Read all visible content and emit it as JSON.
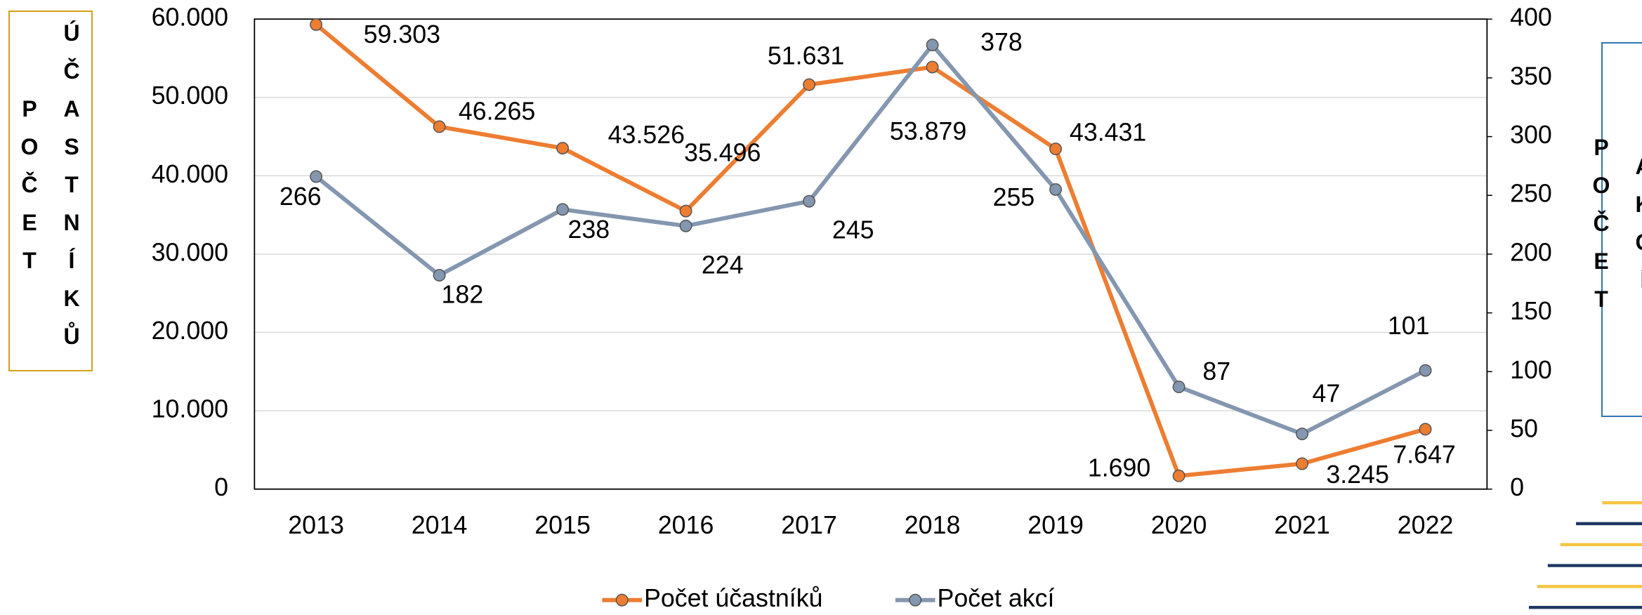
{
  "chart_data": {
    "type": "line",
    "categories": [
      "2013",
      "2014",
      "2015",
      "2016",
      "2017",
      "2018",
      "2019",
      "2020",
      "2021",
      "2022"
    ],
    "y_label": "POČET ÚČASTNÍKŮ",
    "y2_label": "POČET AKCÍ",
    "series": [
      {
        "name": "Počet účastníků",
        "color": "#ed7d31",
        "values": [
          59303,
          46265,
          43526,
          35496,
          51631,
          53879,
          43431,
          1690,
          3245,
          7647
        ],
        "value_labels": [
          "59.303",
          "46.265",
          "43.526",
          "35.496",
          "51.631",
          "53.879",
          "43.431",
          "1.690",
          "3.245",
          "7.647"
        ]
      },
      {
        "name": "Počet akcí",
        "color": "#8497b0",
        "axis": "y2",
        "values": [
          266,
          182,
          238,
          224,
          245,
          378,
          255,
          87,
          47,
          101
        ]
      }
    ],
    "ylim": [
      0,
      60000
    ],
    "yticks": [
      0,
      {
        "value": 10000,
        "label": "10.000"
      },
      {
        "value": 20000,
        "label": "20.000"
      },
      {
        "value": 30000,
        "label": "30.000"
      },
      {
        "value": 40000,
        "label": "40.000"
      },
      {
        "value": 50000,
        "label": "50.000"
      },
      {
        "value": 60000,
        "label": "60.000"
      }
    ],
    "y2lim": [
      0,
      400
    ],
    "y2ticks": [
      0,
      50,
      100,
      150,
      200,
      250,
      300,
      350,
      400
    ],
    "grid": true,
    "legend": "bottom"
  }
}
